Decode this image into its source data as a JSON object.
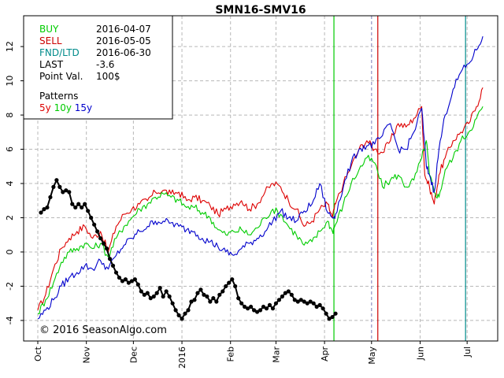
{
  "chart_data": {
    "type": "line",
    "title": "SMN16-SMV16",
    "ylim": [
      -5.2,
      13.8
    ],
    "xlim": [
      0,
      290
    ],
    "y_ticks": [
      -4,
      -2,
      0,
      2,
      4,
      6,
      8,
      10,
      12
    ],
    "y_tick_labels": [
      "-4",
      "-2",
      "0",
      "2",
      "4",
      "6",
      "8",
      "10",
      "12"
    ],
    "x_ticks": [
      {
        "label": "Oct",
        "x": 0
      },
      {
        "label": "Nov",
        "x": 31
      },
      {
        "label": "Dec",
        "x": 61
      },
      {
        "label": "2016",
        "x": 92
      },
      {
        "label": "Feb",
        "x": 123
      },
      {
        "label": "Mar",
        "x": 152
      },
      {
        "label": "Apr",
        "x": 183
      },
      {
        "label": "May",
        "x": 213
      },
      {
        "label": "Jun",
        "x": 244
      },
      {
        "label": "Jul",
        "x": 274
      }
    ],
    "grid": true,
    "vlines": [
      {
        "name": "BUY",
        "x": 189,
        "color": "#00cc00"
      },
      {
        "name": "SELL",
        "x": 217,
        "color": "#cc0000"
      },
      {
        "name": "FND/LTD",
        "x": 273,
        "color": "#008b8b"
      },
      {
        "name": "today",
        "x": 213,
        "color": "#9999cc",
        "dashed": true
      }
    ],
    "info": [
      {
        "label": "BUY",
        "value": "2016-04-07",
        "color": "#00cc00"
      },
      {
        "label": "SELL",
        "value": "2016-05-05",
        "color": "#cc0000"
      },
      {
        "label": "FND/LTD",
        "value": "2016-06-30",
        "color": "#008b8b"
      },
      {
        "label": "LAST",
        "value": "-3.6",
        "color": "#000000"
      },
      {
        "label": "Point Val.",
        "value": "100$",
        "color": "#000000"
      }
    ],
    "patterns_label": "Patterns",
    "pattern_legend": [
      {
        "label": "5y",
        "color": "#dd0000"
      },
      {
        "label": "10y",
        "color": "#00cc00"
      },
      {
        "label": "15y",
        "color": "#0000cc"
      }
    ],
    "series": [
      {
        "name": "5y",
        "color": "#dd0000",
        "anchors": [
          [
            0,
            -3.4
          ],
          [
            5,
            -2.5
          ],
          [
            10,
            -1.0
          ],
          [
            15,
            0.2
          ],
          [
            20,
            0.8
          ],
          [
            25,
            1.2
          ],
          [
            30,
            1.5
          ],
          [
            35,
            0.8
          ],
          [
            40,
            1.2
          ],
          [
            45,
            0.0
          ],
          [
            50,
            1.5
          ],
          [
            55,
            2.2
          ],
          [
            60,
            2.5
          ],
          [
            65,
            2.8
          ],
          [
            70,
            3.0
          ],
          [
            75,
            3.5
          ],
          [
            80,
            3.6
          ],
          [
            85,
            3.4
          ],
          [
            90,
            3.5
          ],
          [
            95,
            3.0
          ],
          [
            100,
            3.2
          ],
          [
            105,
            3.0
          ],
          [
            110,
            2.7
          ],
          [
            115,
            2.2
          ],
          [
            120,
            2.5
          ],
          [
            125,
            2.8
          ],
          [
            130,
            3.0
          ],
          [
            135,
            2.5
          ],
          [
            140,
            2.8
          ],
          [
            145,
            3.5
          ],
          [
            150,
            4.0
          ],
          [
            155,
            3.8
          ],
          [
            160,
            3.0
          ],
          [
            165,
            2.5
          ],
          [
            170,
            1.5
          ],
          [
            175,
            1.8
          ],
          [
            180,
            2.5
          ],
          [
            185,
            2.8
          ],
          [
            188,
            2.0
          ],
          [
            190,
            2.8
          ],
          [
            195,
            4.0
          ],
          [
            200,
            5.0
          ],
          [
            205,
            6.0
          ],
          [
            210,
            6.5
          ],
          [
            215,
            6.0
          ],
          [
            220,
            5.8
          ],
          [
            225,
            6.5
          ],
          [
            230,
            7.5
          ],
          [
            235,
            7.3
          ],
          [
            240,
            7.8
          ],
          [
            245,
            8.5
          ],
          [
            247,
            4.5
          ],
          [
            250,
            3.8
          ],
          [
            253,
            2.8
          ],
          [
            256,
            4.5
          ],
          [
            260,
            5.5
          ],
          [
            265,
            6.5
          ],
          [
            270,
            7.0
          ],
          [
            275,
            7.5
          ],
          [
            280,
            8.5
          ],
          [
            284,
            9.6
          ]
        ]
      },
      {
        "name": "10y",
        "color": "#00cc00",
        "anchors": [
          [
            0,
            -3.6
          ],
          [
            5,
            -2.8
          ],
          [
            10,
            -1.8
          ],
          [
            15,
            -0.6
          ],
          [
            20,
            0.0
          ],
          [
            25,
            0.2
          ],
          [
            30,
            0.5
          ],
          [
            35,
            0.2
          ],
          [
            40,
            0.5
          ],
          [
            45,
            -0.3
          ],
          [
            50,
            0.8
          ],
          [
            55,
            1.5
          ],
          [
            60,
            2.0
          ],
          [
            65,
            2.5
          ],
          [
            70,
            2.8
          ],
          [
            75,
            3.2
          ],
          [
            80,
            3.4
          ],
          [
            85,
            3.2
          ],
          [
            90,
            3.0
          ],
          [
            95,
            2.6
          ],
          [
            100,
            2.6
          ],
          [
            105,
            2.3
          ],
          [
            110,
            2.0
          ],
          [
            115,
            1.3
          ],
          [
            120,
            1.0
          ],
          [
            125,
            1.2
          ],
          [
            130,
            1.3
          ],
          [
            135,
            1.0
          ],
          [
            140,
            1.4
          ],
          [
            145,
            2.0
          ],
          [
            150,
            2.5
          ],
          [
            155,
            2.2
          ],
          [
            160,
            1.5
          ],
          [
            165,
            1.0
          ],
          [
            170,
            0.4
          ],
          [
            175,
            0.6
          ],
          [
            180,
            1.2
          ],
          [
            185,
            1.8
          ],
          [
            188,
            1.2
          ],
          [
            190,
            1.6
          ],
          [
            195,
            2.8
          ],
          [
            200,
            4.0
          ],
          [
            205,
            4.8
          ],
          [
            210,
            5.5
          ],
          [
            215,
            5.2
          ],
          [
            220,
            3.8
          ],
          [
            225,
            4.2
          ],
          [
            230,
            4.5
          ],
          [
            235,
            3.8
          ],
          [
            240,
            4.2
          ],
          [
            245,
            5.5
          ],
          [
            248,
            6.5
          ],
          [
            250,
            4.5
          ],
          [
            253,
            3.5
          ],
          [
            256,
            3.2
          ],
          [
            260,
            4.8
          ],
          [
            265,
            5.5
          ],
          [
            270,
            6.5
          ],
          [
            275,
            7.0
          ],
          [
            280,
            7.8
          ],
          [
            284,
            8.5
          ]
        ]
      },
      {
        "name": "15y",
        "color": "#0000cc",
        "anchors": [
          [
            0,
            -3.9
          ],
          [
            5,
            -3.4
          ],
          [
            10,
            -2.8
          ],
          [
            15,
            -2.0
          ],
          [
            20,
            -1.5
          ],
          [
            25,
            -1.2
          ],
          [
            30,
            -0.8
          ],
          [
            35,
            -1.0
          ],
          [
            40,
            -0.5
          ],
          [
            45,
            -1.0
          ],
          [
            50,
            -0.2
          ],
          [
            55,
            0.4
          ],
          [
            60,
            0.8
          ],
          [
            65,
            1.2
          ],
          [
            70,
            1.5
          ],
          [
            75,
            1.8
          ],
          [
            80,
            1.8
          ],
          [
            85,
            1.7
          ],
          [
            90,
            1.5
          ],
          [
            95,
            1.3
          ],
          [
            100,
            1.2
          ],
          [
            105,
            0.8
          ],
          [
            110,
            0.6
          ],
          [
            115,
            0.3
          ],
          [
            120,
            0.0
          ],
          [
            125,
            -0.2
          ],
          [
            130,
            0.2
          ],
          [
            135,
            0.5
          ],
          [
            140,
            0.8
          ],
          [
            145,
            1.2
          ],
          [
            150,
            1.8
          ],
          [
            155,
            2.4
          ],
          [
            160,
            2.0
          ],
          [
            165,
            1.8
          ],
          [
            170,
            2.4
          ],
          [
            175,
            2.8
          ],
          [
            180,
            4.0
          ],
          [
            185,
            2.3
          ],
          [
            188,
            2.0
          ],
          [
            190,
            2.2
          ],
          [
            195,
            3.8
          ],
          [
            200,
            5.2
          ],
          [
            205,
            6.0
          ],
          [
            210,
            6.2
          ],
          [
            215,
            6.3
          ],
          [
            220,
            6.8
          ],
          [
            225,
            7.5
          ],
          [
            230,
            6.0
          ],
          [
            235,
            6.0
          ],
          [
            240,
            7.0
          ],
          [
            245,
            8.4
          ],
          [
            248,
            5.0
          ],
          [
            250,
            4.5
          ],
          [
            253,
            3.5
          ],
          [
            256,
            6.0
          ],
          [
            260,
            8.0
          ],
          [
            265,
            9.5
          ],
          [
            270,
            10.5
          ],
          [
            275,
            11.0
          ],
          [
            280,
            11.8
          ],
          [
            284,
            12.6
          ]
        ]
      },
      {
        "name": "SMN16-SMV16",
        "color": "#000000",
        "markers": true,
        "anchors": [
          [
            2,
            2.3
          ],
          [
            4,
            2.5
          ],
          [
            6,
            2.6
          ],
          [
            8,
            3.2
          ],
          [
            10,
            3.8
          ],
          [
            12,
            4.2
          ],
          [
            14,
            3.8
          ],
          [
            16,
            3.5
          ],
          [
            18,
            3.6
          ],
          [
            20,
            3.5
          ],
          [
            22,
            2.8
          ],
          [
            24,
            2.6
          ],
          [
            26,
            2.8
          ],
          [
            28,
            2.6
          ],
          [
            30,
            2.8
          ],
          [
            32,
            2.4
          ],
          [
            34,
            2.0
          ],
          [
            36,
            1.6
          ],
          [
            38,
            1.2
          ],
          [
            40,
            0.8
          ],
          [
            42,
            0.5
          ],
          [
            44,
            0.2
          ],
          [
            46,
            -0.4
          ],
          [
            48,
            -0.8
          ],
          [
            50,
            -1.2
          ],
          [
            52,
            -1.5
          ],
          [
            54,
            -1.7
          ],
          [
            56,
            -1.6
          ],
          [
            58,
            -1.8
          ],
          [
            60,
            -1.7
          ],
          [
            62,
            -1.6
          ],
          [
            64,
            -1.9
          ],
          [
            66,
            -2.3
          ],
          [
            68,
            -2.5
          ],
          [
            70,
            -2.4
          ],
          [
            72,
            -2.7
          ],
          [
            74,
            -2.6
          ],
          [
            76,
            -2.4
          ],
          [
            78,
            -2.1
          ],
          [
            80,
            -2.6
          ],
          [
            82,
            -2.3
          ],
          [
            84,
            -2.6
          ],
          [
            86,
            -3.0
          ],
          [
            88,
            -3.4
          ],
          [
            90,
            -3.7
          ],
          [
            92,
            -3.9
          ],
          [
            94,
            -3.6
          ],
          [
            96,
            -3.4
          ],
          [
            98,
            -2.9
          ],
          [
            100,
            -2.8
          ],
          [
            102,
            -2.4
          ],
          [
            104,
            -2.2
          ],
          [
            106,
            -2.5
          ],
          [
            108,
            -2.6
          ],
          [
            110,
            -2.9
          ],
          [
            112,
            -2.7
          ],
          [
            114,
            -2.9
          ],
          [
            116,
            -2.5
          ],
          [
            118,
            -2.3
          ],
          [
            120,
            -2.0
          ],
          [
            122,
            -1.8
          ],
          [
            124,
            -1.6
          ],
          [
            126,
            -2.0
          ],
          [
            128,
            -2.7
          ],
          [
            130,
            -3.0
          ],
          [
            132,
            -3.2
          ],
          [
            134,
            -3.3
          ],
          [
            136,
            -3.2
          ],
          [
            138,
            -3.4
          ],
          [
            140,
            -3.5
          ],
          [
            142,
            -3.4
          ],
          [
            144,
            -3.2
          ],
          [
            146,
            -3.3
          ],
          [
            148,
            -3.1
          ],
          [
            150,
            -3.3
          ],
          [
            152,
            -3.0
          ],
          [
            154,
            -2.8
          ],
          [
            156,
            -2.6
          ],
          [
            158,
            -2.4
          ],
          [
            160,
            -2.3
          ],
          [
            162,
            -2.5
          ],
          [
            164,
            -2.8
          ],
          [
            166,
            -2.9
          ],
          [
            168,
            -2.8
          ],
          [
            170,
            -2.9
          ],
          [
            172,
            -3.0
          ],
          [
            174,
            -2.9
          ],
          [
            176,
            -3.0
          ],
          [
            178,
            -3.2
          ],
          [
            180,
            -3.1
          ],
          [
            182,
            -3.3
          ],
          [
            184,
            -3.6
          ],
          [
            186,
            -3.9
          ],
          [
            188,
            -3.8
          ],
          [
            190,
            -3.6
          ]
        ]
      }
    ]
  },
  "copyright": "© 2016 SeasonAlgo.com"
}
